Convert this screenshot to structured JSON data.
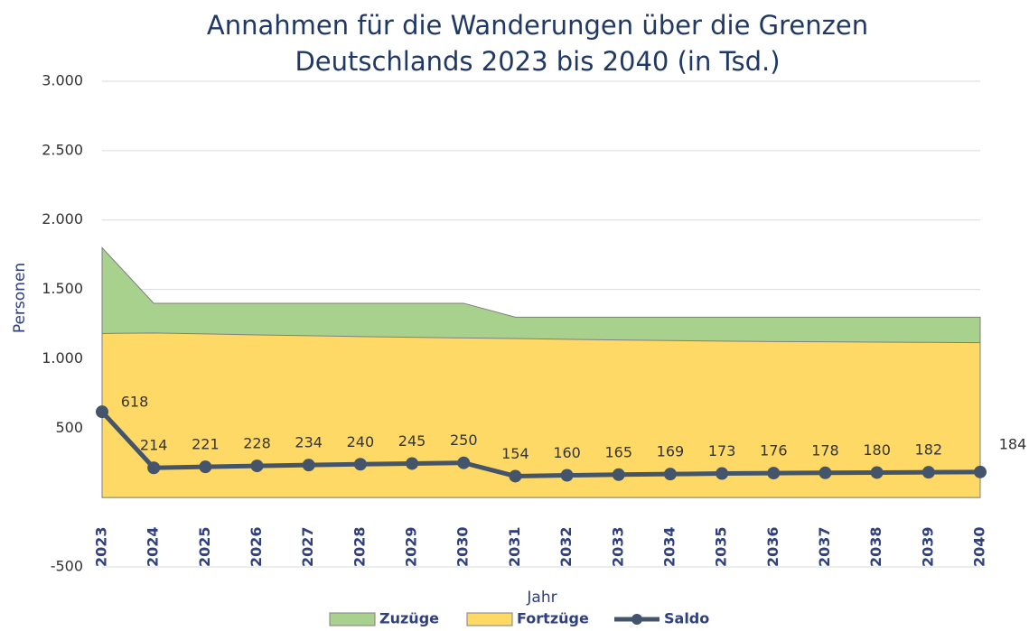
{
  "chart_data": {
    "type": "area-line",
    "title": "Annahmen für die Wanderungen über die Grenzen Deutschlands 2023 bis 2040 (in Tsd.)",
    "xlabel": "Jahr",
    "ylabel": "Personen",
    "categories": [
      "2023",
      "2024",
      "2025",
      "2026",
      "2027",
      "2028",
      "2029",
      "2030",
      "2031",
      "2032",
      "2033",
      "2034",
      "2035",
      "2036",
      "2037",
      "2038",
      "2039",
      "2040"
    ],
    "series": [
      {
        "name": "Zuzüge",
        "kind": "area",
        "color": "#a9d18e",
        "values": [
          1800,
          1400,
          1400,
          1400,
          1400,
          1400,
          1400,
          1400,
          1300,
          1300,
          1300,
          1300,
          1300,
          1300,
          1300,
          1300,
          1300,
          1300
        ]
      },
      {
        "name": "Fortzüge",
        "kind": "area",
        "color": "#ffd966",
        "values": [
          1182,
          1186,
          1179,
          1172,
          1166,
          1160,
          1155,
          1150,
          1146,
          1140,
          1135,
          1131,
          1127,
          1124,
          1122,
          1120,
          1118,
          1116
        ]
      },
      {
        "name": "Saldo",
        "kind": "line",
        "color": "#44546a",
        "values": [
          618,
          214,
          221,
          228,
          234,
          240,
          245,
          250,
          154,
          160,
          165,
          169,
          173,
          176,
          178,
          180,
          182,
          184
        ]
      }
    ],
    "ylim": [
      -500,
      3000
    ],
    "yticks": [
      -500,
      500,
      {
        "value": 1000,
        "label": "1.000"
      },
      {
        "value": 1500,
        "label": "1.500"
      },
      {
        "value": 2000,
        "label": "2.000"
      },
      {
        "value": 2500,
        "label": "2.500"
      },
      {
        "value": 3000,
        "label": "3.000"
      }
    ],
    "grid": true,
    "legend": "bottom"
  }
}
